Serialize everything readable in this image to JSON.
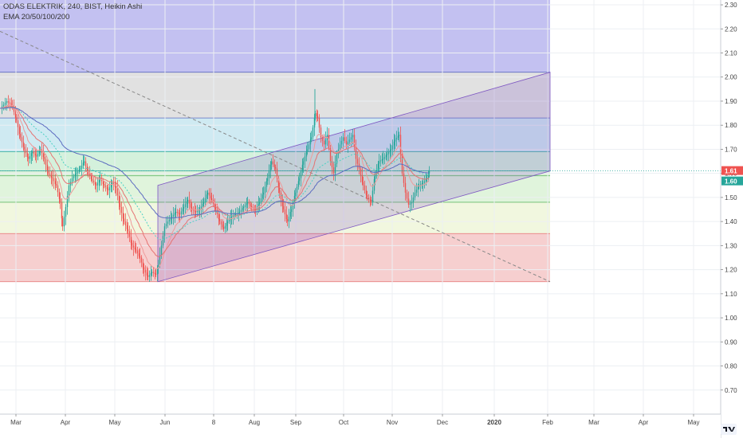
{
  "chart_data": {
    "type": "candlestick",
    "title": "ODAS ELEKTRIK, 240, BIST, Heikin Ashi",
    "indicator": "EMA 20/50/100/200",
    "ylim": [
      0.6,
      2.32
    ],
    "y_ticks": [
      "0.70",
      "0.80",
      "0.90",
      "1.00",
      "1.10",
      "1.20",
      "1.30",
      "1.40",
      "1.50",
      "1.60",
      "1.70",
      "1.80",
      "1.90",
      "2.00",
      "2.10",
      "2.20",
      "2.30"
    ],
    "x_ticks": [
      "Mar",
      "Apr",
      "May",
      "Jun",
      "8",
      "Aug",
      "Sep",
      "Oct",
      "Nov",
      "Dec",
      "2020",
      "Feb",
      "Mar",
      "Apr",
      "May"
    ],
    "last_price": "1.61",
    "last_ema": "1.60",
    "colors": {
      "up": "#26a69a",
      "down": "#ef5350",
      "ema20": "#ef9a9a",
      "ema50": "#e57373",
      "ema100": "#4dd0c4",
      "ema200": "#5c6bc0",
      "trend": "#888888",
      "channel": "#7e57c2"
    },
    "fib_bands": [
      {
        "from": 2.32,
        "to": 2.02,
        "color": "#b9b6ee"
      },
      {
        "from": 2.02,
        "to": 1.83,
        "color": "#dcdcdc"
      },
      {
        "from": 1.83,
        "to": 1.69,
        "color": "#c7e6f0"
      },
      {
        "from": 1.69,
        "to": 1.61,
        "color": "#cdeed6"
      },
      {
        "from": 1.61,
        "to": 1.59,
        "color": "#d6efd2"
      },
      {
        "from": 1.59,
        "to": 1.48,
        "color": "#dbf2d6"
      },
      {
        "from": 1.48,
        "to": 1.35,
        "color": "#eef6d9"
      },
      {
        "from": 1.35,
        "to": 1.15,
        "color": "#f4c7c7"
      }
    ],
    "fib_levels": [
      2.02,
      1.83,
      1.69,
      1.61,
      1.59,
      1.48,
      1.35,
      1.15
    ],
    "price_path": [
      [
        0,
        1.87
      ],
      [
        8,
        1.9
      ],
      [
        15,
        1.88
      ],
      [
        20,
        1.82
      ],
      [
        25,
        1.75
      ],
      [
        30,
        1.7
      ],
      [
        35,
        1.66
      ],
      [
        40,
        1.69
      ],
      [
        45,
        1.67
      ],
      [
        50,
        1.7
      ],
      [
        55,
        1.66
      ],
      [
        60,
        1.6
      ],
      [
        65,
        1.58
      ],
      [
        70,
        1.55
      ],
      [
        75,
        1.48
      ],
      [
        78,
        1.38
      ],
      [
        82,
        1.46
      ],
      [
        86,
        1.55
      ],
      [
        90,
        1.58
      ],
      [
        95,
        1.6
      ],
      [
        100,
        1.62
      ],
      [
        105,
        1.65
      ],
      [
        110,
        1.6
      ],
      [
        115,
        1.57
      ],
      [
        120,
        1.55
      ],
      [
        125,
        1.58
      ],
      [
        130,
        1.55
      ],
      [
        135,
        1.53
      ],
      [
        140,
        1.56
      ],
      [
        145,
        1.54
      ],
      [
        150,
        1.46
      ],
      [
        155,
        1.4
      ],
      [
        160,
        1.36
      ],
      [
        165,
        1.3
      ],
      [
        170,
        1.28
      ],
      [
        175,
        1.25
      ],
      [
        180,
        1.2
      ],
      [
        185,
        1.17
      ],
      [
        190,
        1.19
      ],
      [
        195,
        1.18
      ],
      [
        198,
        1.22
      ],
      [
        202,
        1.3
      ],
      [
        206,
        1.38
      ],
      [
        210,
        1.4
      ],
      [
        215,
        1.42
      ],
      [
        220,
        1.44
      ],
      [
        225,
        1.43
      ],
      [
        230,
        1.46
      ],
      [
        235,
        1.49
      ],
      [
        240,
        1.45
      ],
      [
        245,
        1.44
      ],
      [
        250,
        1.45
      ],
      [
        255,
        1.48
      ],
      [
        260,
        1.52
      ],
      [
        265,
        1.49
      ],
      [
        270,
        1.45
      ],
      [
        275,
        1.4
      ],
      [
        280,
        1.37
      ],
      [
        285,
        1.4
      ],
      [
        290,
        1.42
      ],
      [
        295,
        1.43
      ],
      [
        300,
        1.44
      ],
      [
        305,
        1.46
      ],
      [
        310,
        1.48
      ],
      [
        315,
        1.46
      ],
      [
        320,
        1.45
      ],
      [
        325,
        1.48
      ],
      [
        330,
        1.52
      ],
      [
        335,
        1.58
      ],
      [
        340,
        1.65
      ],
      [
        345,
        1.62
      ],
      [
        350,
        1.52
      ],
      [
        355,
        1.45
      ],
      [
        360,
        1.4
      ],
      [
        365,
        1.45
      ],
      [
        370,
        1.52
      ],
      [
        375,
        1.58
      ],
      [
        380,
        1.65
      ],
      [
        385,
        1.7
      ],
      [
        390,
        1.75
      ],
      [
        395,
        1.85
      ],
      [
        398,
        1.83
      ],
      [
        402,
        1.75
      ],
      [
        406,
        1.72
      ],
      [
        410,
        1.76
      ],
      [
        414,
        1.65
      ],
      [
        418,
        1.6
      ],
      [
        422,
        1.68
      ],
      [
        426,
        1.72
      ],
      [
        430,
        1.75
      ],
      [
        434,
        1.72
      ],
      [
        438,
        1.74
      ],
      [
        442,
        1.76
      ],
      [
        446,
        1.66
      ],
      [
        450,
        1.62
      ],
      [
        455,
        1.55
      ],
      [
        460,
        1.5
      ],
      [
        465,
        1.48
      ],
      [
        470,
        1.6
      ],
      [
        475,
        1.65
      ],
      [
        480,
        1.66
      ],
      [
        485,
        1.68
      ],
      [
        490,
        1.7
      ],
      [
        495,
        1.74
      ],
      [
        500,
        1.76
      ],
      [
        504,
        1.6
      ],
      [
        508,
        1.52
      ],
      [
        512,
        1.47
      ],
      [
        516,
        1.48
      ],
      [
        520,
        1.52
      ],
      [
        525,
        1.55
      ],
      [
        530,
        1.56
      ],
      [
        535,
        1.58
      ],
      [
        538,
        1.61
      ]
    ]
  }
}
